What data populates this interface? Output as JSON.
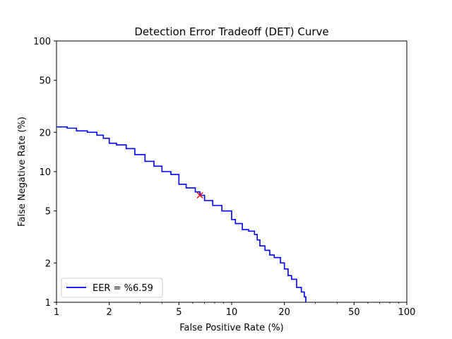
{
  "chart_data": {
    "type": "line",
    "title": "Detection Error Tradeoff (DET) Curve",
    "xlabel": "False Positive Rate (%)",
    "ylabel": "False Negative Rate (%)",
    "xscale": "log",
    "yscale": "log",
    "xlim": [
      1,
      100
    ],
    "ylim": [
      1,
      100
    ],
    "xticks": [
      1,
      2,
      5,
      10,
      20,
      50,
      100
    ],
    "yticks": [
      1,
      2,
      5,
      10,
      20,
      50,
      100
    ],
    "grid": false,
    "legend_position": "lower-left",
    "series": [
      {
        "name": "EER = %6.59",
        "color": "#0000ff",
        "x": [
          1.0,
          1.15,
          1.3,
          1.5,
          1.7,
          1.85,
          2.0,
          2.2,
          2.5,
          2.8,
          3.2,
          3.6,
          4.0,
          4.5,
          5.0,
          5.5,
          6.2,
          6.59,
          7.0,
          7.8,
          8.8,
          10.0,
          10.5,
          11.5,
          12.5,
          13.5,
          14.0,
          14.5,
          15.5,
          16.5,
          17.5,
          19.0,
          20.0,
          21.0,
          22.0,
          23.5,
          25.0,
          26.0,
          26.5
        ],
        "y": [
          22.0,
          21.5,
          20.5,
          20.0,
          19.0,
          18.0,
          16.5,
          16.0,
          15.0,
          13.5,
          12.0,
          11.0,
          10.0,
          9.5,
          8.0,
          7.5,
          7.0,
          6.59,
          6.0,
          5.5,
          5.0,
          4.3,
          4.0,
          3.6,
          3.5,
          3.3,
          3.0,
          2.7,
          2.5,
          2.3,
          2.2,
          2.0,
          1.8,
          1.6,
          1.5,
          1.3,
          1.2,
          1.1,
          1.0
        ]
      }
    ],
    "eer_marker": {
      "x": 6.59,
      "y": 6.59,
      "marker": "x",
      "color": "#ff0000"
    }
  }
}
